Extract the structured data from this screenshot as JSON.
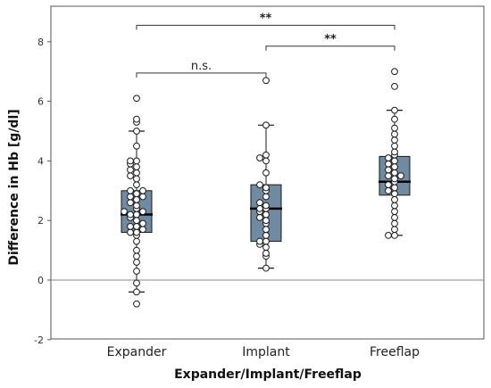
{
  "chart_data": {
    "type": "box",
    "xlabel": "Expander/Implant/Freeflap",
    "ylabel": "Difference in Hb [g/dl]",
    "ylim": [
      -2,
      9
    ],
    "yticks": [
      -2,
      0,
      2,
      4,
      6,
      8
    ],
    "reference_line_y": 0,
    "categories": [
      "Expander",
      "Implant",
      "Freeflap"
    ],
    "colors": {
      "box": "#6f8aa1",
      "point_fill": "#ffffff",
      "stroke": "#1a1a1a",
      "frame": "#555555"
    },
    "boxes": [
      {
        "category": "Expander",
        "whisker_low": -0.4,
        "q1": 1.6,
        "median": 2.2,
        "q3": 3.0,
        "whisker_high": 5.0,
        "outliers": [
          -0.8,
          5.3,
          5.4,
          6.1
        ],
        "points": [
          -0.4,
          -0.1,
          0.3,
          0.6,
          0.8,
          1.0,
          1.3,
          1.5,
          1.6,
          1.6,
          1.7,
          1.8,
          1.8,
          1.9,
          2.0,
          2.1,
          2.2,
          2.2,
          2.3,
          2.3,
          2.4,
          2.5,
          2.6,
          2.7,
          2.8,
          2.8,
          2.9,
          3.0,
          3.0,
          3.2,
          3.4,
          3.5,
          3.6,
          3.7,
          3.8,
          3.9,
          4.0,
          4.0,
          4.5,
          5.0
        ]
      },
      {
        "category": "Implant",
        "whisker_low": 0.4,
        "q1": 1.3,
        "median": 2.4,
        "q3": 3.2,
        "whisker_high": 5.2,
        "outliers": [
          6.7
        ],
        "points": [
          0.4,
          0.8,
          0.9,
          1.1,
          1.2,
          1.3,
          1.3,
          1.5,
          1.7,
          1.9,
          2.0,
          2.1,
          2.2,
          2.3,
          2.4,
          2.4,
          2.5,
          2.6,
          2.8,
          3.0,
          3.1,
          3.2,
          3.6,
          4.0,
          4.1,
          4.2,
          5.2
        ]
      },
      {
        "category": "Freeflap",
        "whisker_low": 1.5,
        "q1": 2.85,
        "median": 3.3,
        "q3": 4.15,
        "whisker_high": 5.7,
        "outliers": [
          6.5,
          7.0
        ],
        "points": [
          1.5,
          1.5,
          1.7,
          1.9,
          2.1,
          2.3,
          2.5,
          2.7,
          2.9,
          3.0,
          3.1,
          3.2,
          3.3,
          3.4,
          3.5,
          3.5,
          3.6,
          3.7,
          3.8,
          3.9,
          4.0,
          4.1,
          4.2,
          4.3,
          4.5,
          4.7,
          4.9,
          5.1,
          5.4,
          5.7
        ]
      }
    ],
    "annotations": [
      {
        "from": "Expander",
        "to": "Implant",
        "y": 6.95,
        "label": "n.s."
      },
      {
        "from": "Expander",
        "to": "Freeflap",
        "y": 8.55,
        "label": "**"
      },
      {
        "from": "Implant",
        "to": "Freeflap",
        "y": 7.85,
        "label": "**"
      }
    ]
  }
}
